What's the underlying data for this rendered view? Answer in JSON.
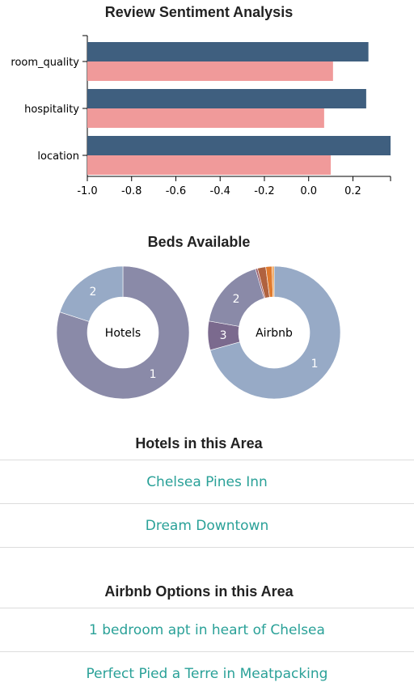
{
  "sentiment_title": "Review Sentiment Analysis",
  "beds_title": "Beds Available",
  "hotels_title": "Hotels in this Area",
  "airbnb_title": "Airbnb Options in this Area",
  "hotels": [
    "Chelsea Pines Inn",
    "Dream Downtown"
  ],
  "airbnbs": [
    "1 bedroom apt in heart of Chelsea",
    "Perfect Pied a Terre in Meatpacking"
  ],
  "colors": {
    "series_a": "#3f5f7f",
    "series_b": "#f09a9a",
    "link": "#2aa198",
    "hotel_slices": [
      "#8a8aa8",
      "#97aac6"
    ],
    "airbnb_slices": [
      "#97aac6",
      "#7b6a8e",
      "#8a8aa8",
      "#9a5f6e",
      "#b0623f",
      "#e07a2e",
      "#f0a050"
    ]
  },
  "chart_data": [
    {
      "type": "bar",
      "orientation": "horizontal",
      "title": "Review Sentiment Analysis",
      "categories": [
        "room_quality",
        "hospitality",
        "location"
      ],
      "series": [
        {
          "values": [
            0.27,
            0.26,
            0.37
          ]
        },
        {
          "values": [
            0.11,
            0.07,
            0.1
          ]
        }
      ],
      "xlim": [
        -1.0,
        0.37
      ],
      "xticks": [
        -1.0,
        -0.8,
        -0.6,
        -0.4,
        -0.2,
        0.0,
        0.2
      ],
      "tick_labels": [
        "-1.0",
        "-0.8",
        "-0.6",
        "-0.4",
        "-0.2",
        "0.0",
        "0.2"
      ]
    },
    {
      "type": "pie",
      "variant": "donut",
      "title": "Beds Available",
      "center_label": "Hotels",
      "slices": [
        {
          "label": "1",
          "value": 80
        },
        {
          "label": "2",
          "value": 20
        }
      ]
    },
    {
      "type": "pie",
      "variant": "donut",
      "center_label": "Airbnb",
      "slices": [
        {
          "label": "1",
          "value": 70
        },
        {
          "label": "3",
          "value": 7
        },
        {
          "label": "2",
          "value": 17.5
        },
        {
          "label": "",
          "value": 0.5
        },
        {
          "label": "",
          "value": 2
        },
        {
          "label": "",
          "value": 1.5
        },
        {
          "label": "",
          "value": 0.5
        }
      ]
    }
  ]
}
